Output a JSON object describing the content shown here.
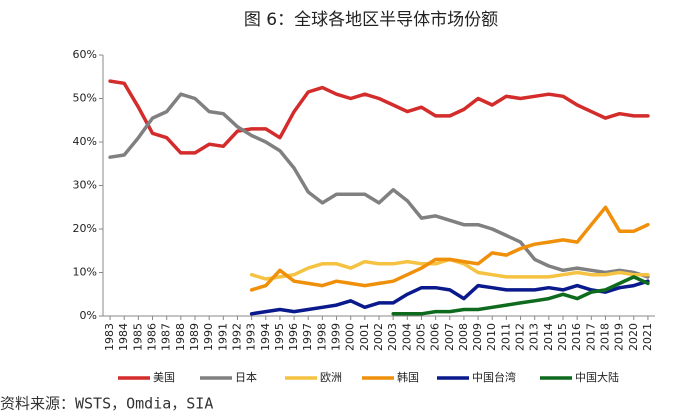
{
  "chart_data": {
    "type": "line",
    "title": "图 6：全球各地区半导体市场份额",
    "source": "资料来源：WSTS，Omdia，SIA",
    "categories": [
      "1983",
      "1984",
      "1985",
      "1986",
      "1987",
      "1988",
      "1989",
      "1990",
      "1991",
      "1992",
      "1993",
      "1994",
      "1995",
      "1996",
      "1997",
      "1998",
      "1999",
      "2000",
      "2001",
      "2002",
      "2003",
      "2004",
      "2005",
      "2006",
      "2007",
      "2008",
      "2009",
      "2010",
      "2011",
      "2012",
      "2013",
      "2014",
      "2015",
      "2016",
      "2017",
      "2018",
      "2019",
      "2020",
      "2021"
    ],
    "ylim": [
      0,
      60
    ],
    "yticks": [
      {
        "value": 0,
        "label": "0%"
      },
      {
        "value": 10,
        "label": "10%"
      },
      {
        "value": 20,
        "label": "20%"
      },
      {
        "value": 30,
        "label": "30%"
      },
      {
        "value": 40,
        "label": "40%"
      },
      {
        "value": 50,
        "label": "50%"
      },
      {
        "value": 60,
        "label": "60%"
      }
    ],
    "legend": "bottom",
    "series": [
      {
        "name": "美国",
        "color": "#d42b2b",
        "values": [
          54,
          53.5,
          48,
          42,
          41,
          37.5,
          37.5,
          39.5,
          39,
          42.5,
          43,
          43,
          41,
          47,
          51.5,
          52.5,
          51,
          50,
          51,
          50,
          48.5,
          47,
          48,
          46,
          46,
          47.5,
          50,
          48.5,
          50.5,
          50,
          50.5,
          51,
          50.5,
          48.5,
          47,
          45.5,
          46.5,
          46,
          46
        ]
      },
      {
        "name": "日本",
        "color": "#808080",
        "values": [
          36.5,
          37,
          41,
          45.5,
          47,
          51,
          50,
          47,
          46.5,
          43.5,
          41.5,
          40,
          38,
          34,
          28.5,
          26,
          28,
          28,
          28,
          26,
          29,
          26.5,
          22.5,
          23,
          22,
          21,
          21,
          20,
          18.5,
          17,
          13,
          11.5,
          10.5,
          11,
          10.5,
          10,
          10.5,
          10,
          9
        ]
      },
      {
        "name": "欧洲",
        "color": "#f5c242",
        "values": [
          null,
          null,
          null,
          null,
          null,
          null,
          null,
          null,
          null,
          null,
          9.5,
          8.5,
          9,
          9.5,
          11,
          12,
          12,
          11,
          12.5,
          12,
          12,
          12.5,
          12,
          12,
          13,
          12,
          10,
          9.5,
          9,
          9,
          9,
          9,
          9.5,
          10,
          9.5,
          9.5,
          10,
          9.5,
          9.5
        ]
      },
      {
        "name": "韩国",
        "color": "#f0900a",
        "values": [
          null,
          null,
          null,
          null,
          null,
          null,
          null,
          null,
          null,
          null,
          6,
          7,
          10.5,
          8,
          7.5,
          7,
          8,
          7.5,
          7,
          7.5,
          8,
          9.5,
          11,
          13,
          13,
          12.5,
          12,
          14.5,
          14,
          15.5,
          16.5,
          17,
          17.5,
          17,
          21,
          25,
          19.5,
          19.5,
          21
        ]
      },
      {
        "name": "中国台湾",
        "color": "#0a1a8c",
        "values": [
          null,
          null,
          null,
          null,
          null,
          null,
          null,
          null,
          null,
          null,
          0.5,
          1,
          1.5,
          1,
          1.5,
          2,
          2.5,
          3.5,
          2,
          3,
          3,
          5,
          6.5,
          6.5,
          6,
          4,
          7,
          6.5,
          6,
          6,
          6,
          6.5,
          6,
          7,
          6,
          5.5,
          6.5,
          7,
          8
        ]
      },
      {
        "name": "中国大陆",
        "color": "#0e6b1e",
        "values": [
          null,
          null,
          null,
          null,
          null,
          null,
          null,
          null,
          null,
          null,
          null,
          null,
          null,
          null,
          null,
          null,
          null,
          null,
          null,
          null,
          0.5,
          0.5,
          0.5,
          1,
          1,
          1.5,
          1.5,
          2,
          2.5,
          3,
          3.5,
          4,
          5,
          4,
          5.5,
          6,
          7.5,
          9,
          7.5
        ]
      }
    ]
  }
}
